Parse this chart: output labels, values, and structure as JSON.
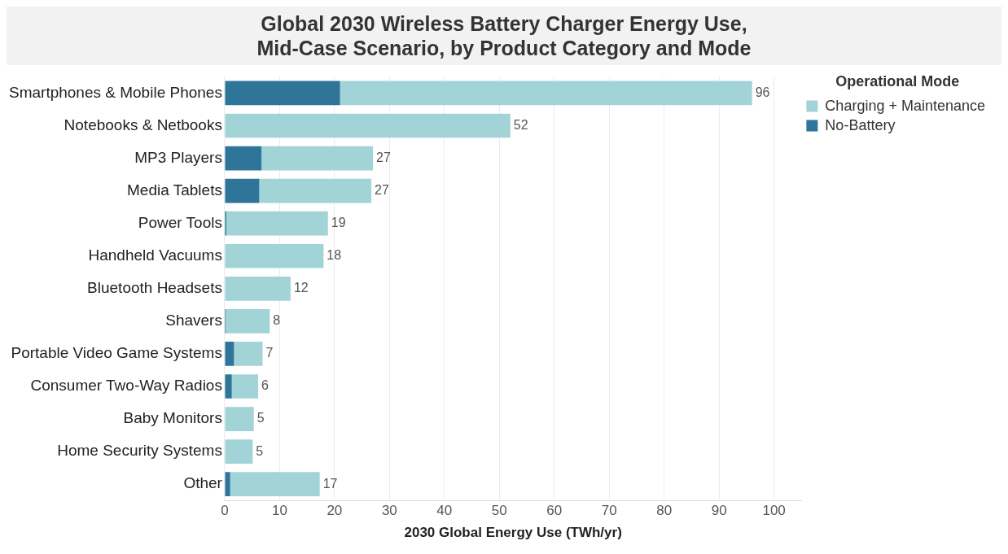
{
  "chart_data": {
    "type": "bar",
    "orientation": "horizontal",
    "stacked": true,
    "title": "Global 2030 Wireless Battery Charger Energy Use,\nMid-Case Scenario, by Product Category and Mode",
    "xlabel": "2030 Global Energy Use (TWh/yr)",
    "legend_title": "Operational Mode",
    "legend": "top right",
    "grid": "x",
    "categories": [
      "Smartphones & Mobile Phones",
      "Notebooks & Netbooks",
      "MP3 Players",
      "Media Tablets",
      "Power Tools",
      "Handheld Vacuums",
      "Bluetooth Headsets",
      "Shavers",
      "Portable Video Game Systems",
      "Consumer Two-Way Radios",
      "Baby Monitors",
      "Home Security Systems",
      "Other"
    ],
    "series": [
      {
        "name": "No-Battery",
        "color": "#2e7599",
        "values": [
          21,
          0,
          6.7,
          6.3,
          0.3,
          0,
          0,
          0.2,
          1.7,
          1.3,
          0,
          0,
          1.0
        ]
      },
      {
        "name": "Charging + Maintenance",
        "color": "#a2d3d6",
        "values": [
          75,
          52,
          20.3,
          20.4,
          18.5,
          18,
          12,
          8.0,
          5.2,
          4.8,
          5.3,
          5.1,
          16.3
        ]
      }
    ],
    "totals": [
      "96",
      "52",
      "27",
      "27",
      "19",
      "18",
      "12",
      "8",
      "7",
      "6",
      "5",
      "5",
      "17"
    ],
    "xlim": [
      0,
      105
    ],
    "xticks": [
      0,
      10,
      20,
      30,
      40,
      50,
      60,
      70,
      80,
      90,
      100
    ]
  }
}
